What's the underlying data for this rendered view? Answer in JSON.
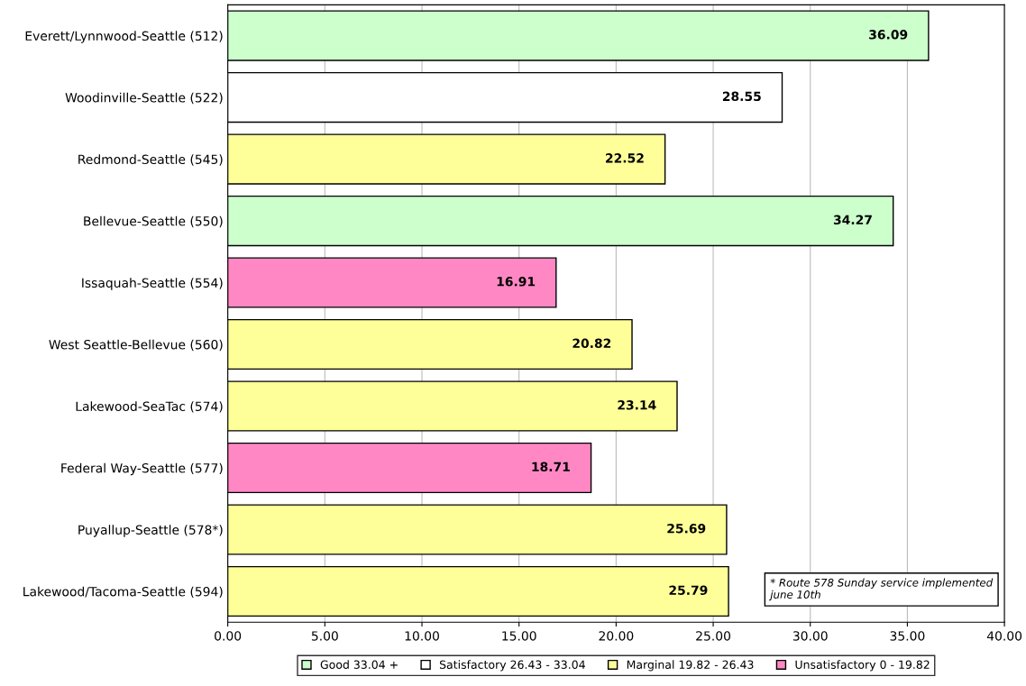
{
  "chart_data": {
    "type": "bar",
    "orientation": "horizontal",
    "categories": [
      "Everett/Lynnwood-Seattle (512)",
      "Woodinville-Seattle (522)",
      "Redmond-Seattle (545)",
      "Bellevue-Seattle (550)",
      "Issaquah-Seattle (554)",
      "West Seattle-Bellevue (560)",
      "Lakewood-SeaTac (574)",
      "Federal Way-Seattle (577)",
      "Puyallup-Seattle (578*)",
      "Lakewood/Tacoma-Seattle (594)"
    ],
    "series": [
      {
        "name": "Good 33.04 +",
        "color": "#ccffcc",
        "values": [
          36.09,
          null,
          null,
          34.27,
          null,
          null,
          null,
          null,
          null,
          null
        ]
      },
      {
        "name": "Satisfactory 26.43 - 33.04",
        "color": "#ffffff",
        "values": [
          null,
          28.55,
          null,
          null,
          null,
          null,
          null,
          null,
          null,
          null
        ]
      },
      {
        "name": "Marginal 19.82 - 26.43",
        "color": "#ffff99",
        "values": [
          null,
          null,
          22.52,
          null,
          null,
          20.82,
          23.14,
          null,
          25.69,
          25.79
        ]
      },
      {
        "name": "Unsatisfactory 0 - 19.82",
        "color": "#ff88c4",
        "values": [
          null,
          null,
          null,
          null,
          16.91,
          null,
          null,
          18.71,
          null,
          null
        ]
      }
    ],
    "xlim": [
      0,
      40
    ],
    "xticks": [
      {
        "value": 0,
        "label": "0.00"
      },
      {
        "value": 5,
        "label": "5.00"
      },
      {
        "value": 10,
        "label": "10.00"
      },
      {
        "value": 15,
        "label": "15.00"
      },
      {
        "value": 20,
        "label": "20.00"
      },
      {
        "value": 25,
        "label": "25.00"
      },
      {
        "value": 30,
        "label": "30.00"
      },
      {
        "value": 35,
        "label": "35.00"
      },
      {
        "value": 40,
        "label": "40.00"
      }
    ],
    "grid": "x",
    "legend": "bottom",
    "data_labels": true,
    "annotations": [
      "* Route 578 Sunday service implemented\njune 10th"
    ]
  }
}
